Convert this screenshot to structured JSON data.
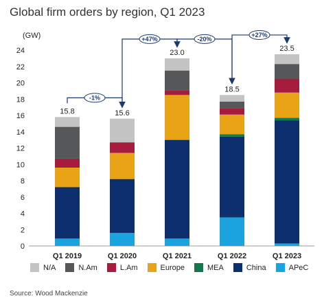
{
  "title": "Global firm orders by region, Q1 2023",
  "source": "Source: Wood Mackenzie",
  "chart_data": {
    "type": "bar",
    "stacked": true,
    "title": "Global firm orders by region, Q1 2023",
    "ylabel": "(GW)",
    "xlabel": "",
    "ylim": [
      0,
      24
    ],
    "yticks": [
      "0",
      "2",
      "4",
      "6",
      "8",
      "10",
      "12",
      "14",
      "16",
      "18",
      "20",
      "22",
      "24"
    ],
    "categories": [
      "Q1 2019",
      "Q1 2020",
      "Q1 2021",
      "Q1 2022",
      "Q1 2023"
    ],
    "series": [
      {
        "name": "APeC",
        "color": "#1aa3de",
        "values": [
          0.9,
          1.6,
          0.9,
          3.5,
          0.3
        ]
      },
      {
        "name": "China",
        "color": "#0e2f6e",
        "values": [
          6.3,
          6.6,
          12.1,
          9.9,
          15.1
        ]
      },
      {
        "name": "MEA",
        "color": "#127a4a",
        "values": [
          0.0,
          0.0,
          0.0,
          0.3,
          0.3
        ]
      },
      {
        "name": "Europe",
        "color": "#e8a317",
        "values": [
          2.4,
          3.2,
          5.5,
          2.4,
          3.1
        ]
      },
      {
        "name": "L.Am",
        "color": "#a51c3c",
        "values": [
          1.1,
          1.3,
          0.6,
          0.8,
          1.7
        ]
      },
      {
        "name": "N.Am",
        "color": "#555759",
        "values": [
          3.9,
          0.0,
          2.4,
          0.8,
          1.8
        ]
      },
      {
        "name": "N/A",
        "color": "#c4c4c4",
        "values": [
          1.2,
          2.9,
          1.5,
          0.8,
          1.2
        ]
      }
    ],
    "totals": [
      "15.8",
      "15.6",
      "23.0",
      "18.5",
      "23.5"
    ],
    "changes": [
      {
        "label": "-1%",
        "from": 0,
        "to": 1
      },
      {
        "label": "+47%",
        "from": 1,
        "to": 2
      },
      {
        "label": "-20%",
        "from": 2,
        "to": 3
      },
      {
        "label": "+27%",
        "from": 3,
        "to": 4
      }
    ],
    "legend": [
      "N/A",
      "N.Am",
      "L.Am",
      "Europe",
      "MEA",
      "China",
      "APeC"
    ],
    "grid": true,
    "legend_position": "bottom"
  }
}
